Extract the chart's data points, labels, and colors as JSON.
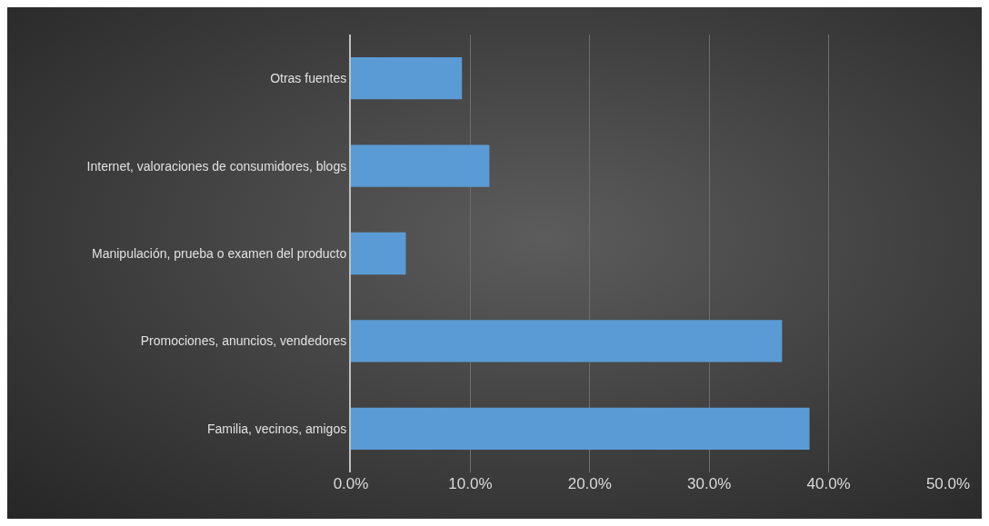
{
  "chart_data": {
    "type": "bar",
    "orientation": "horizontal",
    "categories": [
      "Otras fuentes",
      "Internet, valoraciones de consumidores, blogs",
      "Manipulación, prueba o examen del producto",
      "Promociones, anuncios, vendedores",
      "Familia, vecinos, amigos"
    ],
    "values": [
      9.3,
      11.6,
      4.6,
      36.1,
      38.4
    ],
    "color": "#5b9bd5",
    "xlim": [
      0,
      50
    ],
    "xticks": [
      {
        "value": 0,
        "label": "0.0%"
      },
      {
        "value": 10,
        "label": "10.0%"
      },
      {
        "value": 20,
        "label": "20.0%"
      },
      {
        "value": 30,
        "label": "30.0%"
      },
      {
        "value": 40,
        "label": "40.0%"
      },
      {
        "value": 50,
        "label": "50.0%"
      }
    ],
    "grid": "x",
    "legend": false
  }
}
